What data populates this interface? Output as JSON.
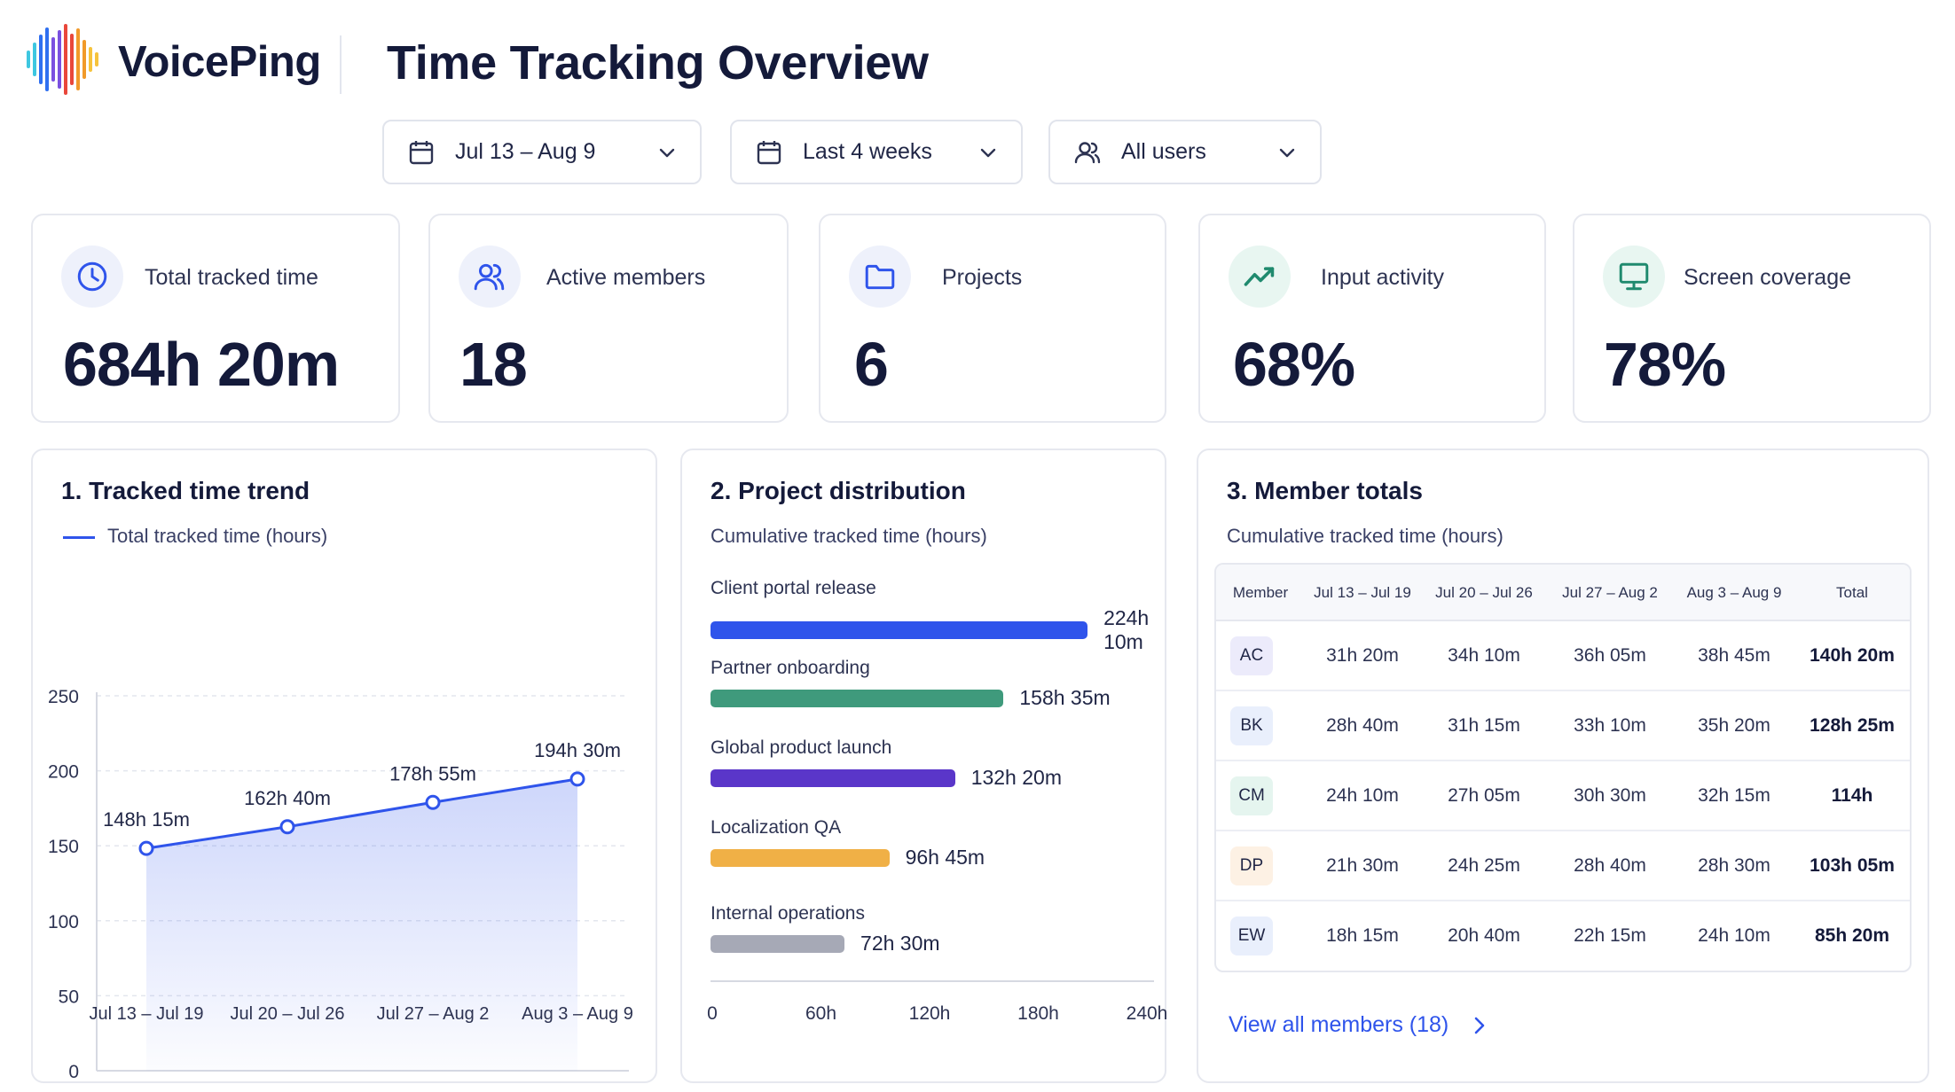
{
  "brand": {
    "name": "VoicePing",
    "logo_colors": [
      "#3ec7e0",
      "#2f6ff0",
      "#7a4fe0",
      "#e9473b",
      "#f19a2a",
      "#f6c33c"
    ]
  },
  "header": {
    "title": "Time Tracking Overview"
  },
  "filters": [
    {
      "label": "Jul 13 – Aug 9",
      "icon": "calendar-icon"
    },
    {
      "label": "Last 4 weeks",
      "icon": "calendar-icon"
    },
    {
      "label": "All users",
      "icon": "users-icon"
    }
  ],
  "stats": [
    {
      "label": "Total tracked time",
      "value": "684h 20m",
      "icon": "clock-icon",
      "icon_bg": "#eef1fb",
      "icon_color": "#2f54eb"
    },
    {
      "label": "Active members",
      "value": "18",
      "icon": "users-icon",
      "icon_bg": "#eef1fb",
      "icon_color": "#2f54eb"
    },
    {
      "label": "Projects",
      "value": "6",
      "icon": "folder-icon",
      "icon_bg": "#eef1fb",
      "icon_color": "#2f54eb"
    },
    {
      "label": "Input activity",
      "value": "68%",
      "icon": "trend-up-icon",
      "icon_bg": "#e8f6f1",
      "icon_color": "#1f8a6e"
    },
    {
      "label": "Screen coverage",
      "value": "78%",
      "icon": "monitor-icon",
      "icon_bg": "#e8f6f1",
      "icon_color": "#1f8a6e"
    }
  ],
  "trend_card": {
    "title": "1.  Tracked time trend",
    "legend": "Total tracked time (hours)"
  },
  "project_card": {
    "title": "2.  Project distribution",
    "subtitle": "Cumulative tracked time (hours)"
  },
  "member_card": {
    "title": "3.  Member totals",
    "subtitle": "Cumulative tracked time (hours)",
    "columns": [
      "Member",
      "Jul 13 – Jul 19",
      "Jul 20 – Jul 26",
      "Jul 27 – Aug 2",
      "Aug 3 – Aug 9",
      "Total"
    ],
    "rows": [
      {
        "initials": "AC",
        "color": "#ecebfb",
        "weeks": [
          "31h 20m",
          "34h 10m",
          "36h 05m",
          "38h 45m"
        ],
        "total": "140h 20m"
      },
      {
        "initials": "BK",
        "color": "#e9effc",
        "weeks": [
          "28h 40m",
          "31h 15m",
          "33h 10m",
          "35h 20m"
        ],
        "total": "128h 25m"
      },
      {
        "initials": "CM",
        "color": "#e5f5ef",
        "weeks": [
          "24h 10m",
          "27h 05m",
          "30h 30m",
          "32h 15m"
        ],
        "total": "114h"
      },
      {
        "initials": "DP",
        "color": "#fdf1e4",
        "weeks": [
          "21h 30m",
          "24h 25m",
          "28h 40m",
          "28h 30m"
        ],
        "total": "103h 05m"
      },
      {
        "initials": "EW",
        "color": "#e9effc",
        "weeks": [
          "18h 15m",
          "20h 40m",
          "22h 15m",
          "24h 10m"
        ],
        "total": "85h 20m"
      }
    ],
    "view_all": "View all members (18)"
  },
  "chart_data": [
    {
      "type": "area",
      "categories": [
        "Jul 13 – Jul 19",
        "Jul 20 – Jul 26",
        "Jul 27 – Aug 2",
        "Aug 3 – Aug 9"
      ],
      "series": [
        {
          "name": "Total tracked time (hours)",
          "values": [
            148.25,
            162.67,
            178.92,
            194.5
          ],
          "labels": [
            "148h 15m",
            "162h 40m",
            "178h 55m",
            "194h 30m"
          ],
          "color": "#2f54eb"
        }
      ],
      "yticks": [
        0,
        50,
        100,
        150,
        200,
        250
      ],
      "ylim": [
        0,
        250
      ],
      "grid": true
    },
    {
      "type": "bar",
      "orientation": "horizontal",
      "categories": [
        "Client portal release",
        "Partner onboarding",
        "Global product launch",
        "Localization QA",
        "Internal operations"
      ],
      "values": [
        224.17,
        158.58,
        132.33,
        96.75,
        72.5
      ],
      "labels": [
        "224h 10m",
        "158h 35m",
        "132h 20m",
        "96h 45m",
        "72h 30m"
      ],
      "colors": [
        "#2f54eb",
        "#3f9a7c",
        "#5a36c9",
        "#f0b046",
        "#a6a9b6"
      ],
      "xticks": [
        "0",
        "60h",
        "120h",
        "180h",
        "240h"
      ],
      "xlim": [
        0,
        240
      ]
    }
  ]
}
